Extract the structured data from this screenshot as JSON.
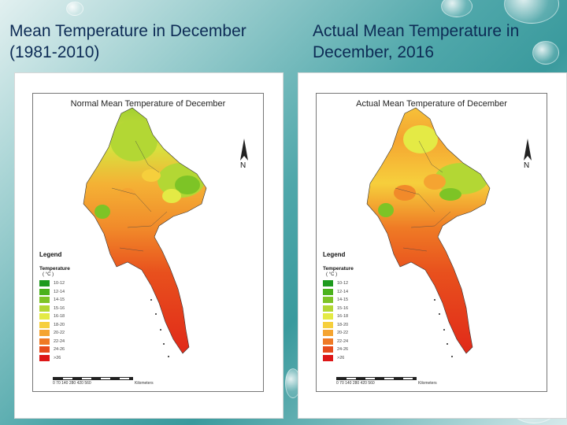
{
  "slide": {
    "left_title": "Mean Temperature in December (1981-2010)",
    "right_title": "Actual Mean Temperature in December, 2016"
  },
  "maps": [
    {
      "title": "Normal Mean Temperature of December",
      "north": "N",
      "legend_title": "Legend",
      "legend_subtitle": "Temperature",
      "legend_unit": "( °C )",
      "legend_items": [
        {
          "label": "10-12",
          "color": "#1e9a1e"
        },
        {
          "label": "12-14",
          "color": "#4bb21c"
        },
        {
          "label": "14-15",
          "color": "#7dc426"
        },
        {
          "label": "15-16",
          "color": "#b3d734"
        },
        {
          "label": "16-18",
          "color": "#e4ea45"
        },
        {
          "label": "18-20",
          "color": "#f6cf3c"
        },
        {
          "label": "20-22",
          "color": "#f5a431"
        },
        {
          "label": "22-24",
          "color": "#ef7a25"
        },
        {
          "label": "24-26",
          "color": "#e74c1c"
        },
        {
          "label": ">26",
          "color": "#dd1717"
        }
      ],
      "scale_label": "0  70 140      280      420      560",
      "scale_unit": "Kilometers"
    },
    {
      "title": "Actual Mean Temperature of December",
      "north": "N",
      "legend_title": "Legend",
      "legend_subtitle": "Temperature",
      "legend_unit": "( °C )",
      "legend_items": [
        {
          "label": "10-12",
          "color": "#1e9a1e"
        },
        {
          "label": "12-14",
          "color": "#4bb21c"
        },
        {
          "label": "14-15",
          "color": "#7dc426"
        },
        {
          "label": "15-16",
          "color": "#b3d734"
        },
        {
          "label": "16-18",
          "color": "#e4ea45"
        },
        {
          "label": "18-20",
          "color": "#f6cf3c"
        },
        {
          "label": "20-22",
          "color": "#f5a431"
        },
        {
          "label": "22-24",
          "color": "#ef7a25"
        },
        {
          "label": "24-26",
          "color": "#e74c1c"
        },
        {
          "label": ">26",
          "color": "#dd1717"
        }
      ],
      "scale_label": "0  70 140      280      420      560",
      "scale_unit": "Kilometers"
    }
  ]
}
